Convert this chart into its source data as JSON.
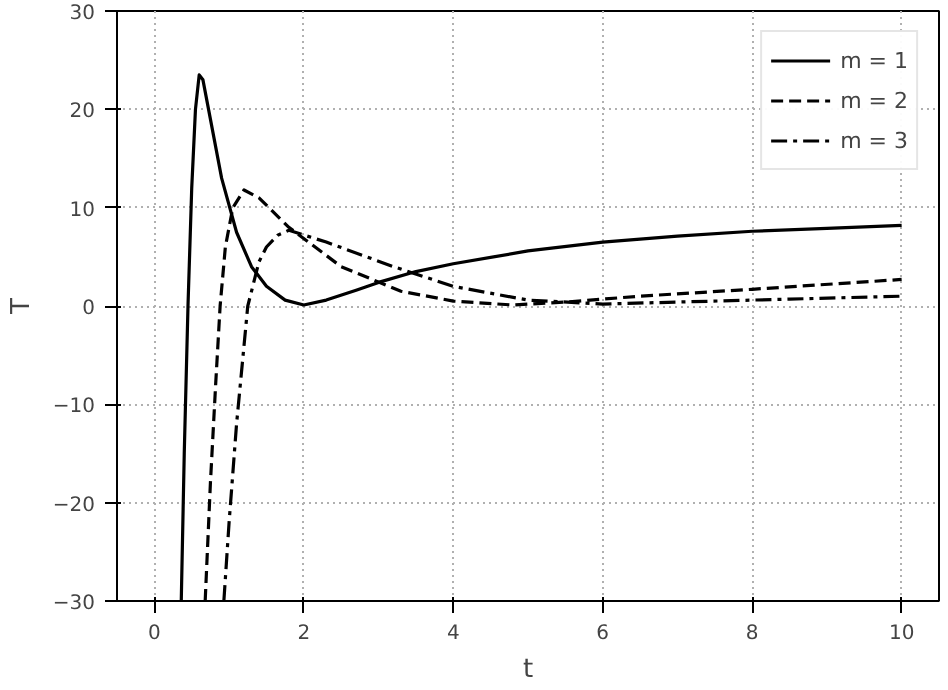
{
  "chart_data": {
    "type": "line",
    "xlabel": "t",
    "ylabel": "T",
    "xlim": [
      -0.5,
      10.5
    ],
    "ylim": [
      -30,
      30
    ],
    "xticks": [
      0,
      2,
      4,
      6,
      8,
      10
    ],
    "yticks": [
      -30,
      -20,
      -10,
      0,
      10,
      20,
      30
    ],
    "grid": true,
    "legend": "top right",
    "marker": "none",
    "series": [
      {
        "name": "m = 1",
        "color": "#000000",
        "line_style": "solid",
        "x": [
          0.36,
          0.4,
          0.45,
          0.5,
          0.55,
          0.6,
          0.65,
          0.75,
          0.9,
          1.1,
          1.3,
          1.5,
          1.75,
          2,
          2.3,
          2.7,
          3,
          3.5,
          4,
          5,
          6,
          7,
          8,
          9,
          10
        ],
        "values": [
          -30,
          -15,
          0,
          12,
          20,
          23.5,
          23,
          19,
          13,
          7.5,
          4,
          2,
          0.6,
          0.1,
          0.6,
          1.6,
          2.4,
          3.5,
          4.3,
          5.6,
          6.5,
          7.1,
          7.6,
          7.9,
          8.2
        ]
      },
      {
        "name": "m = 2",
        "color": "#000000",
        "line_style": "dashed",
        "x": [
          0.68,
          0.75,
          0.82,
          0.88,
          0.95,
          1.05,
          1.2,
          1.4,
          1.8,
          2.5,
          3.3,
          4,
          4.8,
          5.5,
          6.5,
          8,
          10
        ],
        "values": [
          -30,
          -18,
          -8,
          0,
          6,
          10,
          11.8,
          11,
          8,
          4,
          1.5,
          0.5,
          0.1,
          0.4,
          1,
          1.7,
          2.7
        ]
      },
      {
        "name": "m = 3",
        "color": "#000000",
        "line_style": "dashdot",
        "x": [
          0.93,
          1.0,
          1.1,
          1.25,
          1.4,
          1.5,
          1.65,
          1.8,
          2.3,
          3.2,
          4,
          5,
          6,
          7,
          8.5,
          10
        ],
        "values": [
          -30,
          -22,
          -12,
          0,
          4.5,
          6,
          7.2,
          7.7,
          6.5,
          4,
          2,
          0.6,
          0.2,
          0.4,
          0.7,
          1.0
        ]
      }
    ]
  }
}
